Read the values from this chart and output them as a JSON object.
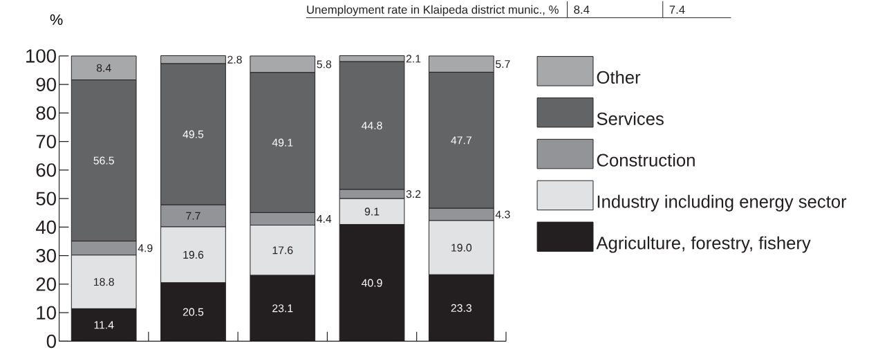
{
  "chart_data": {
    "type": "bar",
    "stacked": true,
    "ylabel": "%",
    "categories": [
      null,
      null,
      null,
      null,
      null
    ],
    "series": [
      {
        "name": "Agriculture, forestry, fishery",
        "color": "#231f20",
        "values": [
          11.4,
          20.5,
          23.1,
          40.9,
          23.3
        ],
        "value_labels": [
          "11.4",
          "20.5",
          "23.1",
          "40.9",
          "23.3"
        ]
      },
      {
        "name": "Industry including energy sector",
        "color": "#e1e2e4",
        "values": [
          18.8,
          19.6,
          17.6,
          9.1,
          19.0
        ],
        "value_labels": [
          "18.8",
          "19.6",
          "17.6",
          "9.1",
          "19.0"
        ]
      },
      {
        "name": "Construction",
        "color": "#929497",
        "values": [
          4.9,
          7.7,
          4.4,
          3.2,
          4.3
        ],
        "value_labels": [
          "4.9",
          "7.7",
          "4.4",
          "3.2",
          "4.3"
        ]
      },
      {
        "name": "Services",
        "color": "#636466",
        "values": [
          56.5,
          49.5,
          49.1,
          44.8,
          47.7
        ],
        "value_labels": [
          "56.5",
          "49.5",
          "49.1",
          "44.8",
          "47.7"
        ]
      },
      {
        "name": "Other",
        "color": "#a7a8aa",
        "values": [
          8.4,
          2.8,
          5.8,
          2.1,
          5.7
        ],
        "value_labels": [
          "8.4",
          "2.8",
          "5.8",
          "2.1",
          "5.7"
        ]
      }
    ],
    "ylim": [
      0,
      100
    ],
    "yticks": [
      0,
      10,
      20,
      30,
      40,
      50,
      60,
      70,
      80,
      90,
      100
    ],
    "legend": "right",
    "annotations": [
      "Unemployment rate in Klaipeda district munic., %",
      "8.4",
      "7.4"
    ]
  }
}
